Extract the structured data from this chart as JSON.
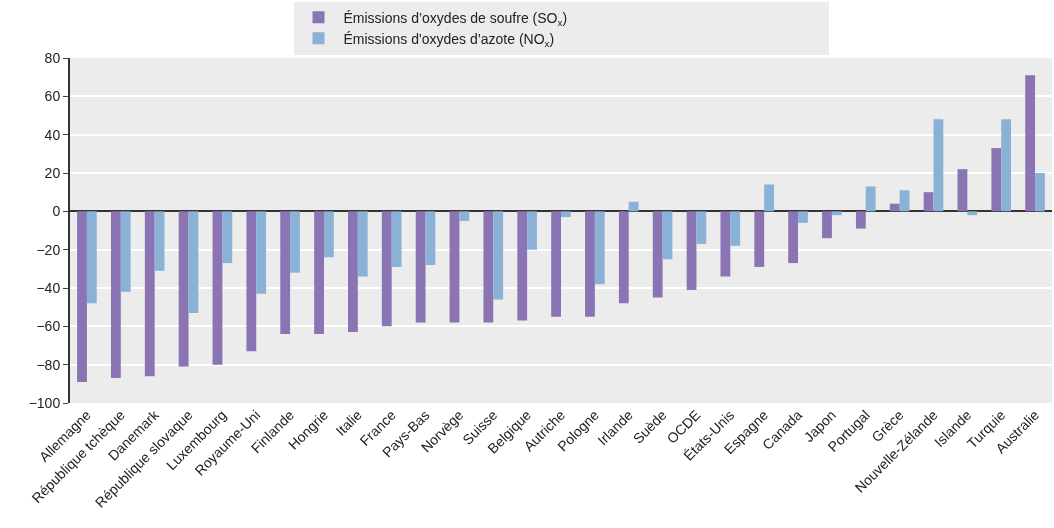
{
  "chart_data": {
    "type": "bar",
    "categories": [
      "Allemagne",
      "République tchèque",
      "Danemark",
      "République slovaque",
      "Luxembourg",
      "Royaume-Uni",
      "Finlande",
      "Hongrie",
      "Italie",
      "France",
      "Pays-Bas",
      "Norvège",
      "Suisse",
      "Belgique",
      "Autriche",
      "Pologne",
      "Irlande",
      "Suède",
      "OCDE",
      "États-Unis",
      "Espagne",
      "Canada",
      "Japon",
      "Portugal",
      "Grèce",
      "Nouvelle-Zélande",
      "Islande",
      "Turquie",
      "Australie"
    ],
    "series": [
      {
        "name": "Émissions d’oxydes de soufre (SO$_{x}$)",
        "color": "#8a74b4",
        "values": [
          -89,
          -87,
          -86,
          -81,
          -80,
          -73,
          -64,
          -64,
          -63,
          -60,
          -58,
          -58,
          -58,
          -57,
          -55,
          -55,
          -48,
          -45,
          -41,
          -34,
          -29,
          -27,
          -14,
          -9,
          4,
          10,
          22,
          33,
          71
        ]
      },
      {
        "name": "Émissions d'oxydes d’azote (NO$_{x}$)",
        "color": "#8ab1d6",
        "values": [
          -48,
          -42,
          -31,
          -53,
          -27,
          -43,
          -32,
          -24,
          -34,
          -29,
          -28,
          -5,
          -46,
          -20,
          -3,
          -38,
          5,
          -25,
          -17,
          -18,
          14,
          -6,
          -2,
          13,
          11,
          48,
          -2,
          48,
          20
        ]
      }
    ],
    "ylim": [
      -100,
      80
    ],
    "yticks": [
      -100,
      -80,
      -60,
      -40,
      -20,
      0,
      20,
      40,
      60,
      80
    ],
    "grid": "y",
    "legend": "top"
  }
}
